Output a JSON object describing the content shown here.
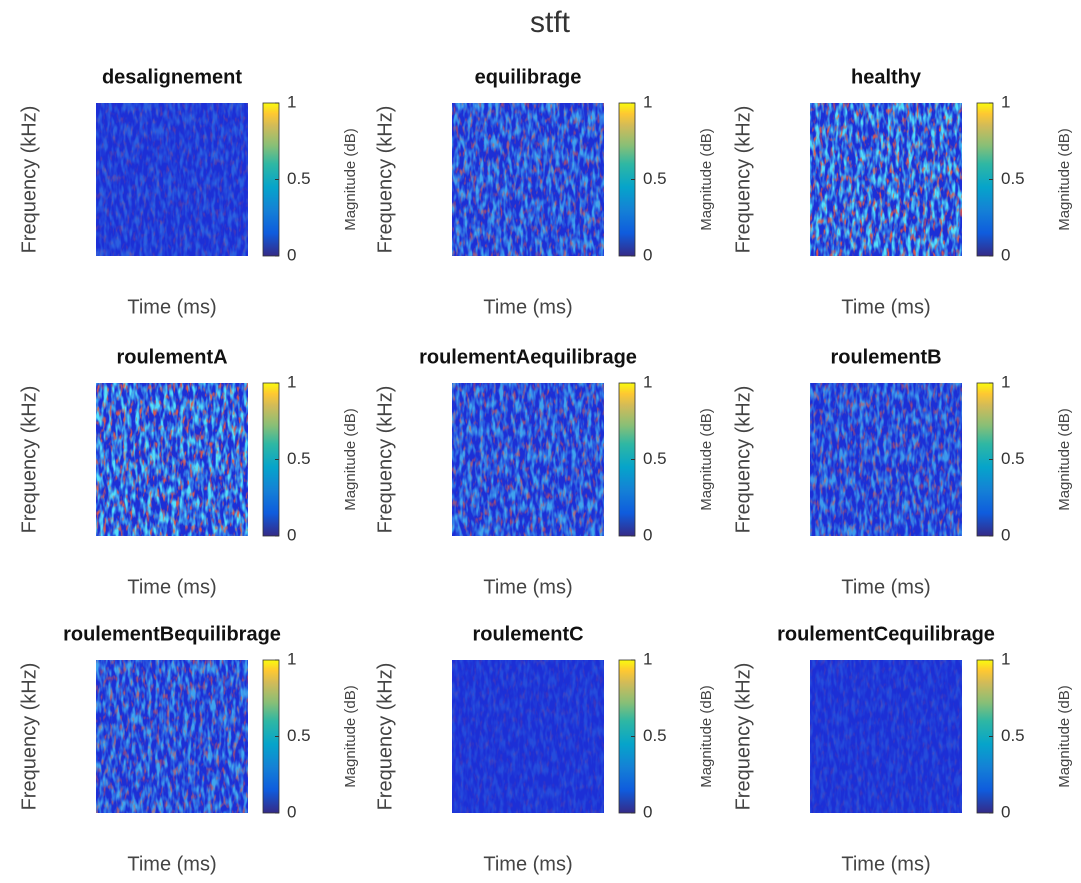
{
  "title": "stft",
  "chart_data": [
    {
      "type": "heatmap",
      "title": "desalignement",
      "xlabel": "Time (ms)",
      "ylabel": "Frequency (kHz)",
      "colorbar_label": "Magnitude (dB)",
      "clim": [
        0,
        1
      ],
      "cticks": [
        0,
        0.5,
        1
      ],
      "colormap": "parula"
    },
    {
      "type": "heatmap",
      "title": "equilibrage",
      "xlabel": "Time (ms)",
      "ylabel": "Frequency (kHz)",
      "colorbar_label": "Magnitude (dB)",
      "clim": [
        0,
        1
      ],
      "cticks": [
        0,
        0.5,
        1
      ],
      "colormap": "parula"
    },
    {
      "type": "heatmap",
      "title": "healthy",
      "xlabel": "Time (ms)",
      "ylabel": "Frequency (kHz)",
      "colorbar_label": "Magnitude (dB)",
      "clim": [
        0,
        1
      ],
      "cticks": [
        0,
        0.5,
        1
      ],
      "colormap": "parula"
    },
    {
      "type": "heatmap",
      "title": "roulementA",
      "xlabel": "Time (ms)",
      "ylabel": "Frequency (kHz)",
      "colorbar_label": "Magnitude (dB)",
      "clim": [
        0,
        1
      ],
      "cticks": [
        0,
        0.5,
        1
      ],
      "colormap": "parula"
    },
    {
      "type": "heatmap",
      "title": "roulementAequilibrage",
      "xlabel": "Time (ms)",
      "ylabel": "Frequency (kHz)",
      "colorbar_label": "Magnitude (dB)",
      "clim": [
        0,
        1
      ],
      "cticks": [
        0,
        0.5,
        1
      ],
      "colormap": "parula"
    },
    {
      "type": "heatmap",
      "title": "roulementB",
      "xlabel": "Time (ms)",
      "ylabel": "Frequency (kHz)",
      "colorbar_label": "Magnitude (dB)",
      "clim": [
        0,
        1
      ],
      "cticks": [
        0,
        0.5,
        1
      ],
      "colormap": "parula"
    },
    {
      "type": "heatmap",
      "title": "roulementBequilibrage",
      "xlabel": "Time (ms)",
      "ylabel": "Frequency (kHz)",
      "colorbar_label": "Magnitude (dB)",
      "clim": [
        0,
        1
      ],
      "cticks": [
        0,
        0.5,
        1
      ],
      "colormap": "parula"
    },
    {
      "type": "heatmap",
      "title": "roulementC",
      "xlabel": "Time (ms)",
      "ylabel": "Frequency (kHz)",
      "colorbar_label": "Magnitude (dB)",
      "clim": [
        0,
        1
      ],
      "cticks": [
        0,
        0.5,
        1
      ],
      "colormap": "parula"
    },
    {
      "type": "heatmap",
      "title": "roulementCequilibrage",
      "xlabel": "Time (ms)",
      "ylabel": "Frequency (kHz)",
      "colorbar_label": "Magnitude (dB)",
      "clim": [
        0,
        1
      ],
      "cticks": [
        0,
        0.5,
        1
      ],
      "colormap": "parula"
    }
  ]
}
